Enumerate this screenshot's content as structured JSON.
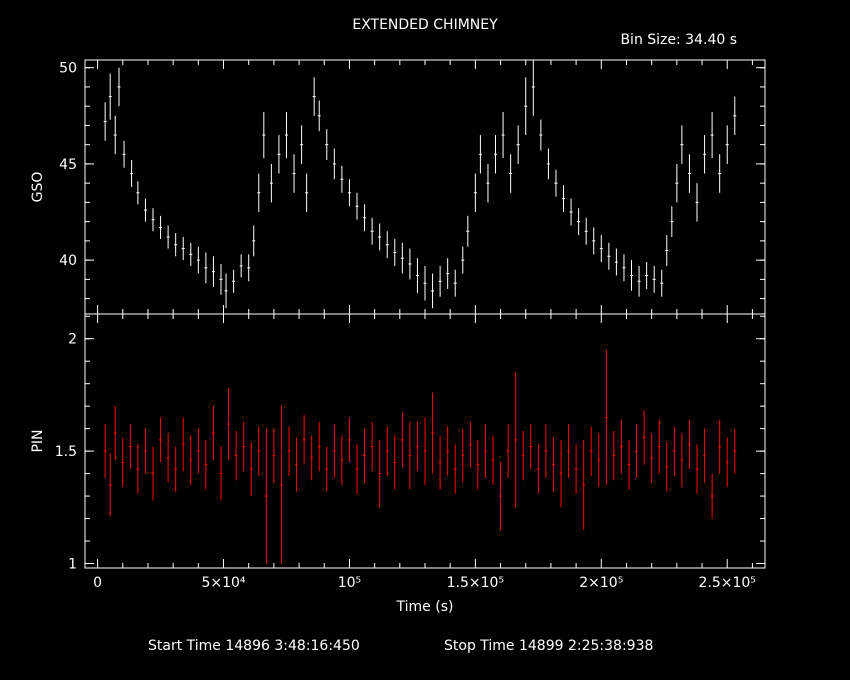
{
  "title": "EXTENDED CHIMNEY",
  "bin_size_label": "Bin Size: 34.40 s",
  "footer": {
    "start_label": "Start Time 14896  3:48:16:450",
    "stop_label": "Stop Time 14899  2:25:38:938"
  },
  "colors": {
    "gso": "#ffffff",
    "pin": "#ff0000",
    "background": "#000000"
  },
  "chart_data": [
    {
      "type": "scatter",
      "name": "gso-panel",
      "ylabel": "GSO",
      "xlabel": "",
      "xlim": [
        -5000,
        265000
      ],
      "ylim": [
        37.2,
        50.4
      ],
      "yticks": [
        40,
        45,
        50
      ],
      "ytick_labels": [
        "40",
        "45",
        "50"
      ],
      "error_bars": true,
      "points": [
        [
          3000,
          47.2,
          1.0
        ],
        [
          5000,
          48.5,
          1.2
        ],
        [
          7000,
          46.5,
          1.0
        ],
        [
          8500,
          49.0,
          1.0
        ],
        [
          10500,
          45.5,
          0.7
        ],
        [
          13500,
          44.5,
          0.7
        ],
        [
          16000,
          43.5,
          0.6
        ],
        [
          19000,
          42.6,
          0.6
        ],
        [
          22000,
          42.1,
          0.6
        ],
        [
          25000,
          41.7,
          0.6
        ],
        [
          28000,
          41.2,
          0.6
        ],
        [
          31000,
          40.8,
          0.6
        ],
        [
          34000,
          40.6,
          0.6
        ],
        [
          37000,
          40.3,
          0.6
        ],
        [
          40000,
          40.0,
          0.7
        ],
        [
          43000,
          39.6,
          0.8
        ],
        [
          46000,
          39.4,
          0.8
        ],
        [
          49000,
          39.0,
          0.8
        ],
        [
          51000,
          38.4,
          0.9
        ],
        [
          54000,
          38.9,
          0.6
        ],
        [
          57000,
          39.7,
          0.6
        ],
        [
          60000,
          39.6,
          0.7
        ],
        [
          62000,
          41.0,
          0.8
        ],
        [
          64000,
          43.5,
          1.0
        ],
        [
          66000,
          46.5,
          1.2
        ],
        [
          69000,
          44.0,
          1.0
        ],
        [
          72000,
          45.5,
          1.0
        ],
        [
          75000,
          46.5,
          1.2
        ],
        [
          78000,
          44.5,
          1.0
        ],
        [
          81000,
          46.0,
          1.0
        ],
        [
          83000,
          43.5,
          1.0
        ],
        [
          86000,
          48.5,
          1.0
        ],
        [
          88000,
          47.5,
          0.8
        ],
        [
          91000,
          46.0,
          0.8
        ],
        [
          94000,
          45.0,
          0.8
        ],
        [
          97000,
          44.2,
          0.7
        ],
        [
          100000,
          43.5,
          0.7
        ],
        [
          103000,
          42.8,
          0.7
        ],
        [
          106000,
          42.2,
          0.7
        ],
        [
          109000,
          41.5,
          0.7
        ],
        [
          112000,
          41.2,
          0.7
        ],
        [
          115000,
          40.8,
          0.7
        ],
        [
          118000,
          40.4,
          0.7
        ],
        [
          121000,
          40.1,
          0.8
        ],
        [
          124000,
          39.8,
          0.8
        ],
        [
          127000,
          39.2,
          0.9
        ],
        [
          130000,
          38.8,
          0.9
        ],
        [
          133000,
          38.4,
          0.9
        ],
        [
          136000,
          38.9,
          0.8
        ],
        [
          139000,
          39.3,
          0.8
        ],
        [
          142000,
          38.8,
          0.7
        ],
        [
          145000,
          40.0,
          0.7
        ],
        [
          147000,
          41.5,
          0.8
        ],
        [
          150000,
          43.5,
          1.0
        ],
        [
          152000,
          45.5,
          1.0
        ],
        [
          155000,
          44.0,
          1.0
        ],
        [
          158000,
          45.5,
          1.0
        ],
        [
          161000,
          46.5,
          1.2
        ],
        [
          164000,
          44.5,
          1.0
        ],
        [
          167000,
          46.0,
          1.0
        ],
        [
          170000,
          48.0,
          1.5
        ],
        [
          173000,
          49.0,
          1.5
        ],
        [
          176000,
          46.5,
          0.8
        ],
        [
          179000,
          45.0,
          0.8
        ],
        [
          182000,
          44.0,
          0.7
        ],
        [
          185000,
          43.2,
          0.7
        ],
        [
          188000,
          42.5,
          0.7
        ],
        [
          191000,
          42.0,
          0.7
        ],
        [
          194000,
          41.5,
          0.7
        ],
        [
          197000,
          41.0,
          0.7
        ],
        [
          200000,
          40.6,
          0.7
        ],
        [
          203000,
          40.2,
          0.7
        ],
        [
          206000,
          39.9,
          0.7
        ],
        [
          209000,
          39.6,
          0.7
        ],
        [
          212000,
          39.2,
          0.8
        ],
        [
          215000,
          38.9,
          0.8
        ],
        [
          218000,
          39.2,
          0.7
        ],
        [
          221000,
          39.0,
          0.7
        ],
        [
          224000,
          38.8,
          0.7
        ],
        [
          226000,
          40.5,
          0.8
        ],
        [
          228000,
          42.0,
          0.8
        ],
        [
          230000,
          44.0,
          1.0
        ],
        [
          232000,
          46.0,
          1.0
        ],
        [
          235000,
          44.5,
          1.0
        ],
        [
          238000,
          43.0,
          1.0
        ],
        [
          241000,
          45.5,
          1.0
        ],
        [
          244000,
          46.5,
          1.2
        ],
        [
          247000,
          44.5,
          1.0
        ],
        [
          250000,
          46.0,
          1.0
        ],
        [
          253000,
          47.5,
          1.0
        ]
      ]
    },
    {
      "type": "scatter",
      "name": "pin-panel",
      "ylabel": "PIN",
      "xlabel": "Time (s)",
      "xlim": [
        -5000,
        265000
      ],
      "ylim": [
        0.98,
        2.11
      ],
      "yticks": [
        1,
        1.5,
        2
      ],
      "ytick_labels": [
        "1",
        "1.5",
        "2"
      ],
      "xticks": [
        0,
        50000,
        100000,
        150000,
        200000,
        250000
      ],
      "xtick_labels": [
        "0",
        "5×10⁴",
        "10⁵",
        "1.5×10⁵",
        "2×10⁵",
        "2.5×10⁵"
      ],
      "error_bars": true,
      "points": [
        [
          3000,
          1.5,
          0.12
        ],
        [
          5000,
          1.35,
          0.14
        ],
        [
          7000,
          1.58,
          0.12
        ],
        [
          10000,
          1.45,
          0.11
        ],
        [
          13000,
          1.52,
          0.1
        ],
        [
          16000,
          1.42,
          0.11
        ],
        [
          19000,
          1.5,
          0.1
        ],
        [
          22000,
          1.4,
          0.12
        ],
        [
          25000,
          1.55,
          0.1
        ],
        [
          28000,
          1.47,
          0.11
        ],
        [
          31000,
          1.42,
          0.1
        ],
        [
          34000,
          1.53,
          0.12
        ],
        [
          37000,
          1.46,
          0.11
        ],
        [
          40000,
          1.5,
          0.1
        ],
        [
          43000,
          1.44,
          0.11
        ],
        [
          46000,
          1.58,
          0.12
        ],
        [
          49000,
          1.4,
          0.12
        ],
        [
          52000,
          1.62,
          0.16
        ],
        [
          55000,
          1.48,
          0.11
        ],
        [
          58000,
          1.52,
          0.11
        ],
        [
          61000,
          1.42,
          0.12
        ],
        [
          64000,
          1.5,
          0.11
        ],
        [
          67000,
          1.3,
          0.3
        ],
        [
          70000,
          1.48,
          0.12
        ],
        [
          73000,
          1.35,
          0.35
        ],
        [
          76000,
          1.5,
          0.11
        ],
        [
          79000,
          1.44,
          0.12
        ],
        [
          82000,
          1.55,
          0.11
        ],
        [
          85000,
          1.47,
          0.1
        ],
        [
          88000,
          1.52,
          0.11
        ],
        [
          91000,
          1.42,
          0.1
        ],
        [
          94000,
          1.5,
          0.12
        ],
        [
          97000,
          1.46,
          0.11
        ],
        [
          100000,
          1.55,
          0.1
        ],
        [
          103000,
          1.42,
          0.11
        ],
        [
          106000,
          1.48,
          0.12
        ],
        [
          109000,
          1.52,
          0.11
        ],
        [
          112000,
          1.4,
          0.15
        ],
        [
          115000,
          1.5,
          0.11
        ],
        [
          118000,
          1.45,
          0.12
        ],
        [
          121000,
          1.55,
          0.12
        ],
        [
          124000,
          1.48,
          0.15
        ],
        [
          127000,
          1.52,
          0.11
        ],
        [
          130000,
          1.5,
          0.15
        ],
        [
          133000,
          1.58,
          0.18
        ],
        [
          136000,
          1.45,
          0.12
        ],
        [
          139000,
          1.5,
          0.11
        ],
        [
          142000,
          1.42,
          0.11
        ],
        [
          145000,
          1.48,
          0.12
        ],
        [
          148000,
          1.53,
          0.1
        ],
        [
          151000,
          1.44,
          0.11
        ],
        [
          154000,
          1.5,
          0.12
        ],
        [
          157000,
          1.46,
          0.11
        ],
        [
          160000,
          1.3,
          0.15
        ],
        [
          163000,
          1.5,
          0.12
        ],
        [
          166000,
          1.55,
          0.3
        ],
        [
          169000,
          1.48,
          0.11
        ],
        [
          172000,
          1.52,
          0.1
        ],
        [
          175000,
          1.42,
          0.11
        ],
        [
          178000,
          1.5,
          0.12
        ],
        [
          181000,
          1.44,
          0.12
        ],
        [
          184000,
          1.4,
          0.15
        ],
        [
          187000,
          1.5,
          0.12
        ],
        [
          190000,
          1.42,
          0.11
        ],
        [
          193000,
          1.35,
          0.2
        ],
        [
          196000,
          1.5,
          0.11
        ],
        [
          199000,
          1.46,
          0.12
        ],
        [
          202000,
          1.65,
          0.3
        ],
        [
          205000,
          1.48,
          0.11
        ],
        [
          208000,
          1.52,
          0.12
        ],
        [
          211000,
          1.44,
          0.11
        ],
        [
          214000,
          1.5,
          0.12
        ],
        [
          217000,
          1.56,
          0.12
        ],
        [
          220000,
          1.47,
          0.11
        ],
        [
          223000,
          1.52,
          0.12
        ],
        [
          226000,
          1.43,
          0.11
        ],
        [
          229000,
          1.5,
          0.11
        ],
        [
          232000,
          1.46,
          0.12
        ],
        [
          235000,
          1.53,
          0.11
        ],
        [
          238000,
          1.42,
          0.11
        ],
        [
          241000,
          1.48,
          0.12
        ],
        [
          244000,
          1.3,
          0.1
        ],
        [
          247000,
          1.52,
          0.12
        ],
        [
          250000,
          1.45,
          0.11
        ],
        [
          253000,
          1.5,
          0.1
        ]
      ]
    }
  ]
}
